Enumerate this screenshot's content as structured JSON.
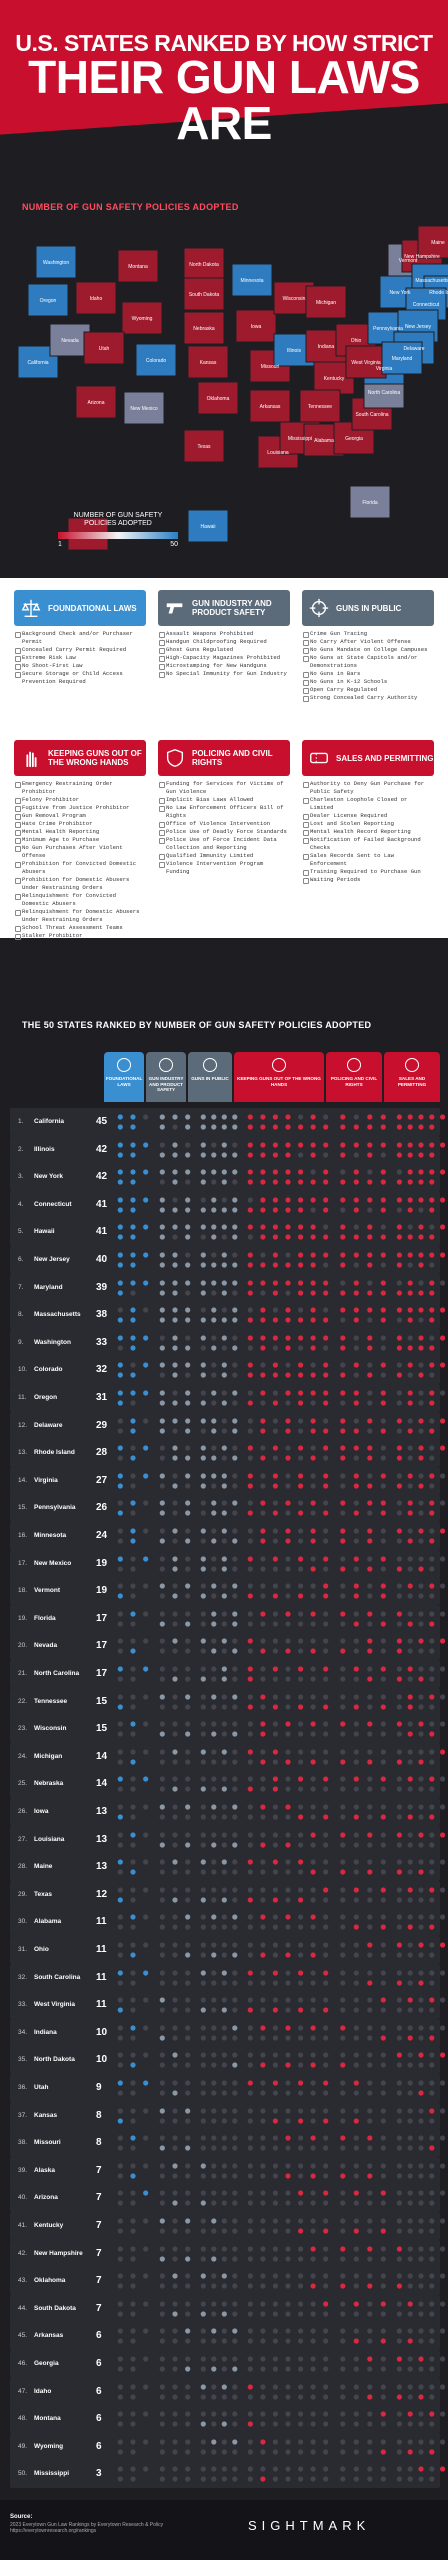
{
  "header": {
    "line1": "U.S. STATES RANKED BY HOW STRICT",
    "line2": "THEIR GUN LAWS ARE"
  },
  "map": {
    "label": "NUMBER OF GUN SAFETY POLICIES ADOPTED",
    "legend_title": "NUMBER OF GUN SAFETY POLICIES ADOPTED",
    "legend_min": "1",
    "legend_max": "50",
    "state_labels": [
      "Washington",
      "Oregon",
      "California",
      "Nevada",
      "Idaho",
      "Montana",
      "Wyoming",
      "Utah",
      "Arizona",
      "Colorado",
      "New Mexico",
      "North Dakota",
      "South Dakota",
      "Nebraska",
      "Kansas",
      "Oklahoma",
      "Texas",
      "Minnesota",
      "Iowa",
      "Missouri",
      "Arkansas",
      "Louisiana",
      "Wisconsin",
      "Illinois",
      "Michigan",
      "Indiana",
      "Ohio",
      "Kentucky",
      "Tennessee",
      "Mississippi",
      "Alabama",
      "Georgia",
      "Florida",
      "South Carolina",
      "North Carolina",
      "Virginia",
      "West Virginia",
      "Pennsylvania",
      "New York",
      "Vermont",
      "New Hampshire",
      "Maine",
      "Massachusetts",
      "Rhode Island",
      "Connecticut",
      "New Jersey",
      "Delaware",
      "Maryland",
      "Alaska",
      "Hawaii"
    ]
  },
  "categories": [
    {
      "title": "FOUNDATIONAL LAWS",
      "color": "#3a8fd0",
      "items": [
        "Background Check and/or Purchaser Permit",
        "Concealed Carry Permit Required",
        "Extreme Risk Law",
        "No Shoot-First Law",
        "Secure Storage or Child Access Prevention Required"
      ]
    },
    {
      "title": "GUN INDUSTRY AND PRODUCT SAFETY",
      "color": "#5c6b7a",
      "items": [
        "Assault Weapons Prohibited",
        "Handgun Childproofing Required",
        "Ghost Guns Regulated",
        "High-Capacity Magazines Prohibited",
        "Microstamping for New Handguns",
        "No Special Immunity for Gun Industry"
      ]
    },
    {
      "title": "GUNS IN PUBLIC",
      "color": "#5c6b7a",
      "items": [
        "Crime Gun Tracing",
        "No Carry After Violent Offense",
        "No Guns Mandate on College Campuses",
        "No Guns at State Capitols and/or Demonstrations",
        "No Guns in Bars",
        "No Guns in K-12 Schools",
        "Open Carry Regulated",
        "Strong Concealed Carry Authority"
      ]
    },
    {
      "title": "KEEPING GUNS OUT OF THE WRONG HANDS",
      "color": "#c8102e",
      "items": [
        "Emergency Restraining Order Prohibitor",
        "Felony Prohibitor",
        "Fugitive from Justice Prohibitor",
        "Gun Removal Program",
        "Hate Crime Prohibitor",
        "Mental Health Reporting",
        "Minimum Age to Purchase",
        "No Gun Purchases After Violent Offense",
        "Prohibition for Convicted Domestic Abusers",
        "Prohibition for Domestic Abusers Under Restraining Orders",
        "Relinquishment for Convicted Domestic Abusers",
        "Relinquishment for Domestic Abusers Under Restraining Orders",
        "School Threat Assessment Teams",
        "Stalker Prohibitor"
      ]
    },
    {
      "title": "POLICING AND CIVIL RIGHTS",
      "color": "#c8102e",
      "items": [
        "Funding for Services for Victims of Gun Violence",
        "Implicit Bias Laws Allowed",
        "No Law Enforcement Officers Bill of Rights",
        "Office of Violence Intervention",
        "Police Use of Deadly Force Standards",
        "Police Use of Force Incident Data Collection and Reporting",
        "Qualified Immunity Limited",
        "Violence Intervention Program Funding"
      ]
    },
    {
      "title": "SALES AND PERMITTING",
      "color": "#c8102e",
      "items": [
        "Authority to Deny Gun Purchase for Public Safety",
        "Charleston Loophole Closed or Limited",
        "Dealer License Required",
        "Lost and Stolen Reporting",
        "Mental Health Record Reporting",
        "Notification of Failed Background Checks",
        "Sales Records Sent to Law Enforcement",
        "Training Required to Purchase Gun",
        "Waiting Periods"
      ]
    }
  ],
  "table": {
    "title": "THE 50 STATES RANKED BY NUMBER OF GUN SAFETY POLICIES ADOPTED",
    "columns": [
      "FOUNDATIONAL LAWS",
      "GUN INDUSTRY AND PRODUCT SAFETY",
      "GUNS IN PUBLIC",
      "KEEPING GUNS OUT OF THE WRONG HANDS",
      "POLICING AND CIVIL RIGHTS",
      "SALES AND PERMITTING"
    ],
    "rows": [
      {
        "rank": "1.",
        "state": "California",
        "count": "45"
      },
      {
        "rank": "2.",
        "state": "Illinois",
        "count": "42"
      },
      {
        "rank": "3.",
        "state": "New York",
        "count": "42"
      },
      {
        "rank": "4.",
        "state": "Connecticut",
        "count": "41"
      },
      {
        "rank": "5.",
        "state": "Hawaii",
        "count": "41"
      },
      {
        "rank": "6.",
        "state": "New Jersey",
        "count": "40"
      },
      {
        "rank": "7.",
        "state": "Maryland",
        "count": "39"
      },
      {
        "rank": "8.",
        "state": "Massachusetts",
        "count": "38"
      },
      {
        "rank": "9.",
        "state": "Washington",
        "count": "33"
      },
      {
        "rank": "10.",
        "state": "Colorado",
        "count": "32"
      },
      {
        "rank": "11.",
        "state": "Oregon",
        "count": "31"
      },
      {
        "rank": "12.",
        "state": "Delaware",
        "count": "29"
      },
      {
        "rank": "13.",
        "state": "Rhode Island",
        "count": "28"
      },
      {
        "rank": "14.",
        "state": "Virginia",
        "count": "27"
      },
      {
        "rank": "15.",
        "state": "Pennsylvania",
        "count": "26"
      },
      {
        "rank": "16.",
        "state": "Minnesota",
        "count": "24"
      },
      {
        "rank": "17.",
        "state": "New Mexico",
        "count": "19"
      },
      {
        "rank": "18.",
        "state": "Vermont",
        "count": "19"
      },
      {
        "rank": "19.",
        "state": "Florida",
        "count": "17"
      },
      {
        "rank": "20.",
        "state": "Nevada",
        "count": "17"
      },
      {
        "rank": "21.",
        "state": "North Carolina",
        "count": "17"
      },
      {
        "rank": "22.",
        "state": "Tennessee",
        "count": "15"
      },
      {
        "rank": "23.",
        "state": "Wisconsin",
        "count": "15"
      },
      {
        "rank": "24.",
        "state": "Michigan",
        "count": "14"
      },
      {
        "rank": "25.",
        "state": "Nebraska",
        "count": "14"
      },
      {
        "rank": "26.",
        "state": "Iowa",
        "count": "13"
      },
      {
        "rank": "27.",
        "state": "Louisiana",
        "count": "13"
      },
      {
        "rank": "28.",
        "state": "Maine",
        "count": "13"
      },
      {
        "rank": "29.",
        "state": "Texas",
        "count": "12"
      },
      {
        "rank": "30.",
        "state": "Alabama",
        "count": "11"
      },
      {
        "rank": "31.",
        "state": "Ohio",
        "count": "11"
      },
      {
        "rank": "32.",
        "state": "South Carolina",
        "count": "11"
      },
      {
        "rank": "33.",
        "state": "West Virginia",
        "count": "11"
      },
      {
        "rank": "34.",
        "state": "Indiana",
        "count": "10"
      },
      {
        "rank": "35.",
        "state": "North Dakota",
        "count": "10"
      },
      {
        "rank": "36.",
        "state": "Utah",
        "count": "9"
      },
      {
        "rank": "37.",
        "state": "Kansas",
        "count": "8"
      },
      {
        "rank": "38.",
        "state": "Missouri",
        "count": "8"
      },
      {
        "rank": "39.",
        "state": "Alaska",
        "count": "7"
      },
      {
        "rank": "40.",
        "state": "Arizona",
        "count": "7"
      },
      {
        "rank": "41.",
        "state": "Kentucky",
        "count": "7"
      },
      {
        "rank": "42.",
        "state": "New Hampshire",
        "count": "7"
      },
      {
        "rank": "43.",
        "state": "Oklahoma",
        "count": "7"
      },
      {
        "rank": "44.",
        "state": "South Dakota",
        "count": "7"
      },
      {
        "rank": "45.",
        "state": "Arkansas",
        "count": "6"
      },
      {
        "rank": "46.",
        "state": "Georgia",
        "count": "6"
      },
      {
        "rank": "47.",
        "state": "Idaho",
        "count": "6"
      },
      {
        "rank": "48.",
        "state": "Montana",
        "count": "6"
      },
      {
        "rank": "49.",
        "state": "Wyoming",
        "count": "6"
      },
      {
        "rank": "50.",
        "state": "Mississippi",
        "count": "3"
      }
    ]
  },
  "footer": {
    "source_label": "Source:",
    "source_text": "2023 Everytown Gun Law Rankings by Everytown Research & Policy https://everytownresearch.org/rankings",
    "brand": "SIGHTMARK"
  }
}
